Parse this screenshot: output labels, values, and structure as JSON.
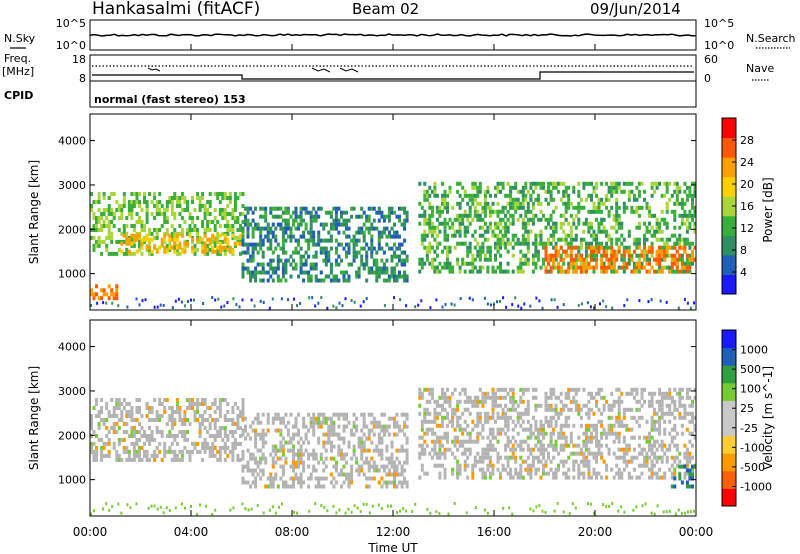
{
  "header": {
    "station": "Hankasalmi (fitACF)",
    "beam": "Beam 02",
    "date": "09/Jun/2014"
  },
  "noise_panel": {
    "left_label": "N.Sky",
    "right_label": "N.Search",
    "left_ticks": [
      "10^5",
      "10^0"
    ],
    "right_ticks": [
      "10^5",
      "10^0"
    ]
  },
  "freq_panel": {
    "left_label_1": "Freq.",
    "left_label_2": "[MHz]",
    "right_label": "Nave",
    "left_ticks": [
      "18",
      "8"
    ],
    "right_ticks": [
      "60",
      "0"
    ]
  },
  "cpid_panel": {
    "label": "CPID",
    "text": "normal (fast stereo) 153"
  },
  "colors": {
    "power_scale": [
      "#1a1aff",
      "#1f5fb5",
      "#2f8f60",
      "#3aae3a",
      "#a8d63a",
      "#ffd000",
      "#ff9f00",
      "#ff5a00",
      "#ff0000"
    ],
    "velocity_scale": [
      "#ff0000",
      "#ff6000",
      "#ff9900",
      "#ffcc33",
      "#c8c8c8",
      "#c8c8c8",
      "#77cc33",
      "#2f9f40",
      "#1f5fb5",
      "#1a1aff"
    ],
    "ground_scatter": "#b4b4b4"
  },
  "chart_data": [
    {
      "type": "heatmap",
      "panel": "power",
      "ylabel": "Slant Range [km]",
      "ylim": [
        180,
        4600
      ],
      "yticks": [
        "1000",
        "2000",
        "3000",
        "4000"
      ],
      "xlim": [
        0,
        24
      ],
      "colorbar": {
        "label": "Power [dB]",
        "range": [
          0,
          32
        ],
        "ticks": [
          "4",
          "8",
          "12",
          "16",
          "20",
          "24",
          "28"
        ]
      },
      "features": [
        {
          "t0": 0.0,
          "t1": 6.0,
          "r0": 1400,
          "r1": 2800,
          "level": 14
        },
        {
          "t0": 1.2,
          "t1": 6.0,
          "r0": 1450,
          "r1": 1850,
          "level": 22
        },
        {
          "t0": 0.0,
          "t1": 1.0,
          "r0": 400,
          "r1": 700,
          "level": 26
        },
        {
          "t0": 6.0,
          "t1": 12.5,
          "r0": 800,
          "r1": 2500,
          "level": 8
        },
        {
          "t0": 13.0,
          "t1": 24.0,
          "r0": 1000,
          "r1": 3000,
          "level": 12
        },
        {
          "t0": 18.0,
          "t1": 24.0,
          "r0": 1000,
          "r1": 1600,
          "level": 26
        }
      ]
    },
    {
      "type": "heatmap",
      "panel": "velocity",
      "ylabel": "Slant Range [km]",
      "ylim": [
        180,
        4600
      ],
      "yticks": [
        "1000",
        "2000",
        "3000",
        "4000"
      ],
      "xlabel": "Time UT",
      "xlim": [
        0,
        24
      ],
      "xticks": [
        "00:00",
        "04:00",
        "08:00",
        "12:00",
        "16:00",
        "20:00",
        "00:00"
      ],
      "colorbar": {
        "label": "Velocity [m s^-1]",
        "ticks": [
          "1000",
          "500",
          "100",
          "25",
          "-25",
          "-100",
          "-500",
          "-1000"
        ]
      },
      "features": [
        {
          "t0": 0.0,
          "t1": 6.0,
          "r0": 1400,
          "r1": 2800,
          "level": 25
        },
        {
          "t0": 6.0,
          "t1": 12.5,
          "r0": 800,
          "r1": 2500,
          "level": 25
        },
        {
          "t0": 13.0,
          "t1": 24.0,
          "r0": 1000,
          "r1": 3000,
          "level": 25
        },
        {
          "t0": 23.0,
          "t1": 24.0,
          "r0": 800,
          "r1": 1300,
          "level": 500
        }
      ]
    }
  ]
}
